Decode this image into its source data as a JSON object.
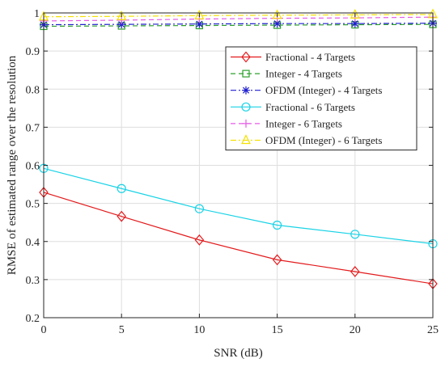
{
  "chart_data": {
    "type": "line",
    "xlabel": "SNR (dB)",
    "ylabel": "RMSE of estimated range over the resolution",
    "xlim": [
      0,
      25
    ],
    "ylim": [
      0.2,
      1
    ],
    "xticks": [
      0,
      5,
      10,
      15,
      20,
      25
    ],
    "yticks": [
      0.2,
      0.3,
      0.4,
      0.5,
      0.6,
      0.7,
      0.8,
      0.9,
      1
    ],
    "xtick_labels": [
      "0",
      "5",
      "10",
      "15",
      "20",
      "25"
    ],
    "ytick_labels": [
      "0.2",
      "0.3",
      "0.4",
      "0.5",
      "0.6",
      "0.7",
      "0.8",
      "0.9",
      "1"
    ],
    "grid": true,
    "legend_position": "top-right",
    "x": [
      0,
      5,
      10,
      15,
      20,
      25
    ],
    "series": [
      {
        "name": "Fractional - 4 Targets",
        "values": [
          0.529,
          0.466,
          0.404,
          0.352,
          0.321,
          0.289
        ],
        "color": "#e31a1c",
        "dash": "solid",
        "marker": "diamond"
      },
      {
        "name": "Integer - 4 Targets",
        "values": [
          0.965,
          0.966,
          0.967,
          0.968,
          0.969,
          0.97
        ],
        "color": "#2ca02c",
        "dash": "dashed",
        "marker": "square"
      },
      {
        "name": "OFDM (Integer) - 4 Targets",
        "values": [
          0.969,
          0.97,
          0.971,
          0.972,
          0.972,
          0.973
        ],
        "color": "#1f1fd0",
        "dash": "dashdot",
        "marker": "asterisk"
      },
      {
        "name": "Fractional - 6 Targets",
        "values": [
          0.592,
          0.539,
          0.486,
          0.443,
          0.419,
          0.394
        ],
        "color": "#19d3e6",
        "dash": "solid",
        "marker": "circle"
      },
      {
        "name": "Integer - 6 Targets",
        "values": [
          0.979,
          0.981,
          0.984,
          0.986,
          0.987,
          0.989
        ],
        "color": "#e65ce6",
        "dash": "dashed",
        "marker": "plus"
      },
      {
        "name": "OFDM (Integer) - 6 Targets",
        "values": [
          0.99,
          0.991,
          0.993,
          0.994,
          0.995,
          0.996
        ],
        "color": "#f5e100",
        "dash": "dashdot",
        "marker": "triangle"
      }
    ]
  }
}
